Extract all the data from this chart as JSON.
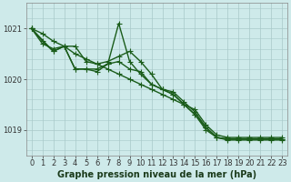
{
  "title": "Graphe pression niveau de la mer (hPa)",
  "bg_color": "#ceeaea",
  "grid_color": "#a8c8c8",
  "line_color": "#1a5c1a",
  "xlim": [
    -0.5,
    23.5
  ],
  "ylim": [
    1018.5,
    1021.5
  ],
  "yticks": [
    1019,
    1020,
    1021
  ],
  "xticks": [
    0,
    1,
    2,
    3,
    4,
    5,
    6,
    7,
    8,
    9,
    10,
    11,
    12,
    13,
    14,
    15,
    16,
    17,
    18,
    19,
    20,
    21,
    22,
    23
  ],
  "series": [
    {
      "x": [
        0,
        1,
        2,
        3,
        4,
        5,
        6,
        7,
        8,
        9,
        10,
        11,
        12,
        13,
        14,
        15,
        16,
        17,
        18,
        19,
        20,
        21,
        22,
        23
      ],
      "y": [
        1021.0,
        1020.75,
        1020.55,
        1020.65,
        1020.65,
        1020.35,
        1020.3,
        1020.35,
        1020.45,
        1020.55,
        1020.35,
        1020.1,
        1019.8,
        1019.75,
        1019.55,
        1019.35,
        1019.05,
        1018.85,
        1018.8,
        1018.8,
        1018.8,
        1018.8,
        1018.8,
        1018.8
      ]
    },
    {
      "x": [
        0,
        1,
        2,
        3,
        4,
        5,
        6,
        7,
        8,
        9,
        10,
        11,
        12,
        13,
        14,
        15,
        16,
        17,
        18,
        19,
        20,
        21,
        22,
        23
      ],
      "y": [
        1021.0,
        1020.7,
        1020.6,
        1020.65,
        1020.2,
        1020.2,
        1020.2,
        1020.3,
        1020.35,
        1020.2,
        1020.15,
        1019.9,
        1019.8,
        1019.7,
        1019.5,
        1019.3,
        1019.0,
        1018.85,
        1018.82,
        1018.82,
        1018.82,
        1018.82,
        1018.82,
        1018.82
      ]
    },
    {
      "x": [
        0,
        2,
        3,
        4,
        5,
        6,
        7,
        8,
        9,
        10,
        11,
        12,
        13,
        14,
        15,
        16,
        17,
        18,
        19,
        20,
        21,
        22,
        23
      ],
      "y": [
        1021.0,
        1020.55,
        1020.65,
        1020.2,
        1020.2,
        1020.15,
        1020.3,
        1021.1,
        1020.35,
        1020.1,
        1019.9,
        1019.8,
        1019.7,
        1019.5,
        1019.3,
        1019.05,
        1018.85,
        1018.82,
        1018.82,
        1018.82,
        1018.82,
        1018.82,
        1018.82
      ]
    },
    {
      "x": [
        0,
        1,
        2,
        3,
        4,
        5,
        6,
        7,
        8,
        9,
        10,
        11,
        12,
        13,
        14,
        15,
        16,
        17,
        18,
        19,
        20,
        21,
        22,
        23
      ],
      "y": [
        1021.0,
        1020.9,
        1020.75,
        1020.65,
        1020.5,
        1020.4,
        1020.3,
        1020.2,
        1020.1,
        1020.0,
        1019.9,
        1019.8,
        1019.7,
        1019.6,
        1019.5,
        1019.4,
        1019.1,
        1018.9,
        1018.85,
        1018.85,
        1018.85,
        1018.85,
        1018.85,
        1018.85
      ]
    }
  ],
  "marker": "+",
  "marker_size": 4,
  "line_width": 1.0,
  "title_fontsize": 7,
  "tick_fontsize": 6
}
